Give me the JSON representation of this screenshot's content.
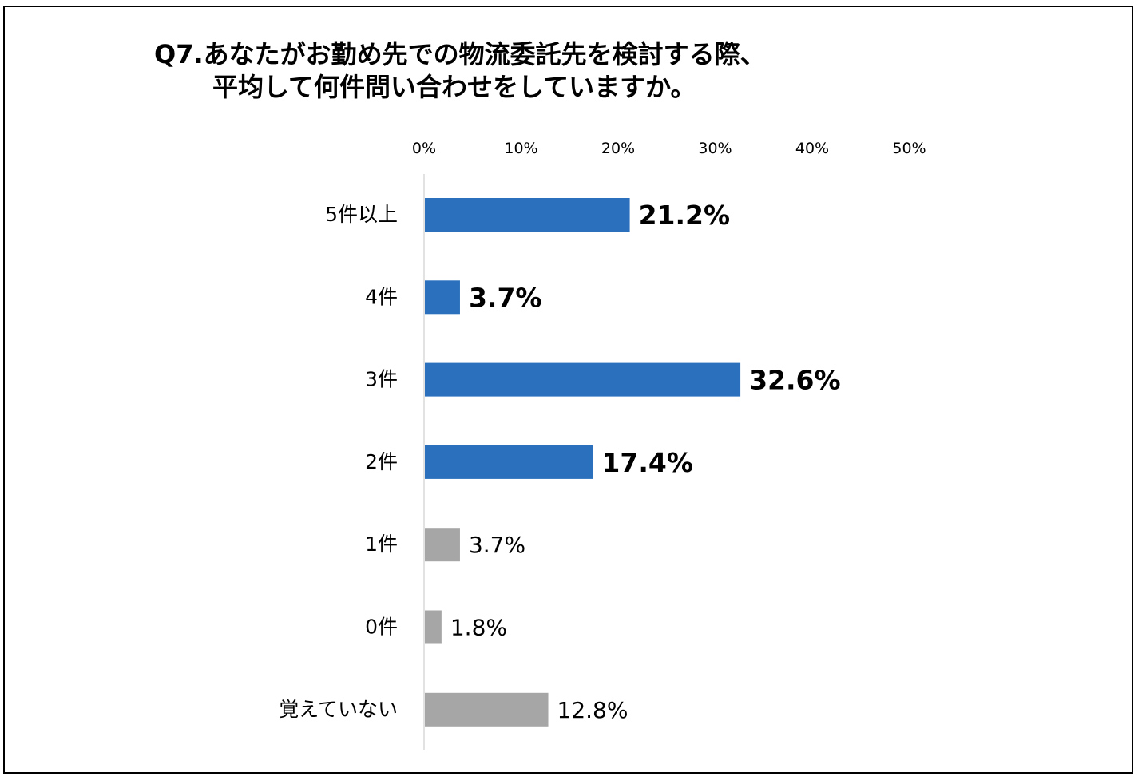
{
  "title": {
    "line1": "Q7.あなたがお勤め先での物流委託先を検討する際、",
    "line2": "平均して何件問い合わせをしていますか。"
  },
  "chart_data": {
    "type": "bar",
    "orientation": "horizontal",
    "categories": [
      "5件以上",
      "4件",
      "3件",
      "2件",
      "1件",
      "0件",
      "覚えていない"
    ],
    "values": [
      21.2,
      3.7,
      32.6,
      17.4,
      3.7,
      1.8,
      12.8
    ],
    "data_labels": [
      "21.2%",
      "3.7%",
      "32.6%",
      "17.4%",
      "3.7%",
      "1.8%",
      "12.8%"
    ],
    "highlighted": [
      true,
      true,
      true,
      true,
      false,
      false,
      false
    ],
    "xlim": [
      0,
      50
    ],
    "xticks": [
      "0%",
      "10%",
      "20%",
      "30%",
      "40%",
      "50%"
    ],
    "x_axis_position": "top",
    "grid": false,
    "colors": {
      "highlight": "#2a70bd",
      "muted": "#a6a6a6",
      "axis": "#d9d9d9"
    }
  }
}
